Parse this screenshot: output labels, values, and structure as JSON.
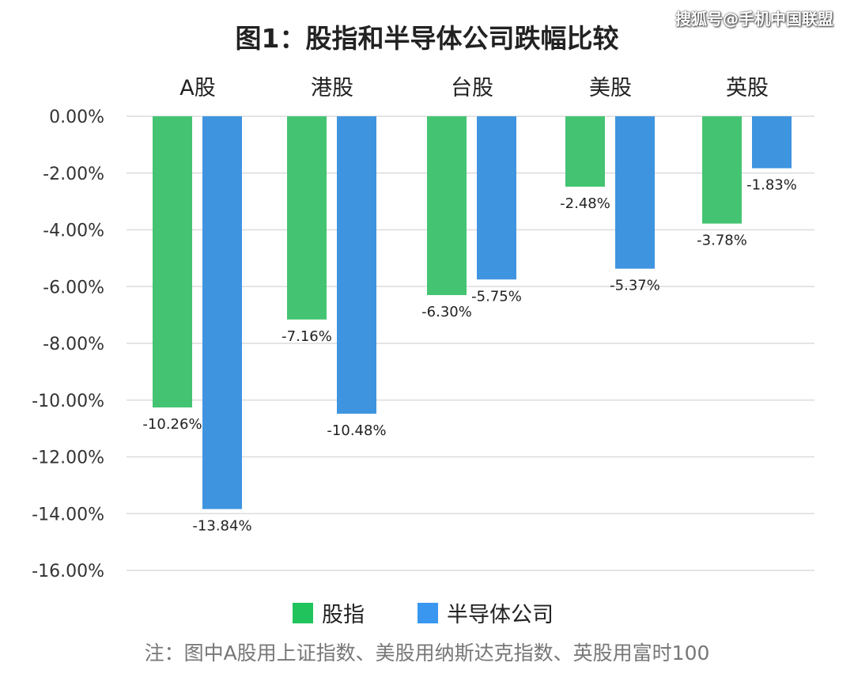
{
  "watermark": "搜狐号@手机中国联盟",
  "note": "注：图中A股用上证指数、美股用纳斯达克指数、英股用富时100",
  "colors": {
    "股指": "#44c472",
    "半导体公司": "#3f94e0",
    "legend_股指": "#21c45c",
    "legend_半导体公司": "#3a97ef"
  },
  "chart_data": {
    "type": "bar",
    "title": "图1：股指和半导体公司跌幅比较",
    "categories": [
      "A股",
      "港股",
      "台股",
      "美股",
      "英股"
    ],
    "series": [
      {
        "name": "股指",
        "values": [
          -10.26,
          -7.16,
          -6.3,
          -2.48,
          -3.78
        ],
        "labels": [
          "-10.26%",
          "-7.16%",
          "-6.30%",
          "-2.48%",
          "-3.78%"
        ]
      },
      {
        "name": "半导体公司",
        "values": [
          -13.84,
          -10.48,
          -5.75,
          -5.37,
          -1.83
        ],
        "labels": [
          "-13.84%",
          "-10.48%",
          "-5.75%",
          "-5.37%",
          "-1.83%"
        ]
      }
    ],
    "ylim": [
      -16,
      0
    ],
    "yticks": [
      "0.00%",
      "-2.00%",
      "-4.00%",
      "-6.00%",
      "-8.00%",
      "-10.00%",
      "-12.00%",
      "-14.00%",
      "-16.00%"
    ],
    "grid": true,
    "legend": "bottom",
    "category_axis": "top"
  }
}
